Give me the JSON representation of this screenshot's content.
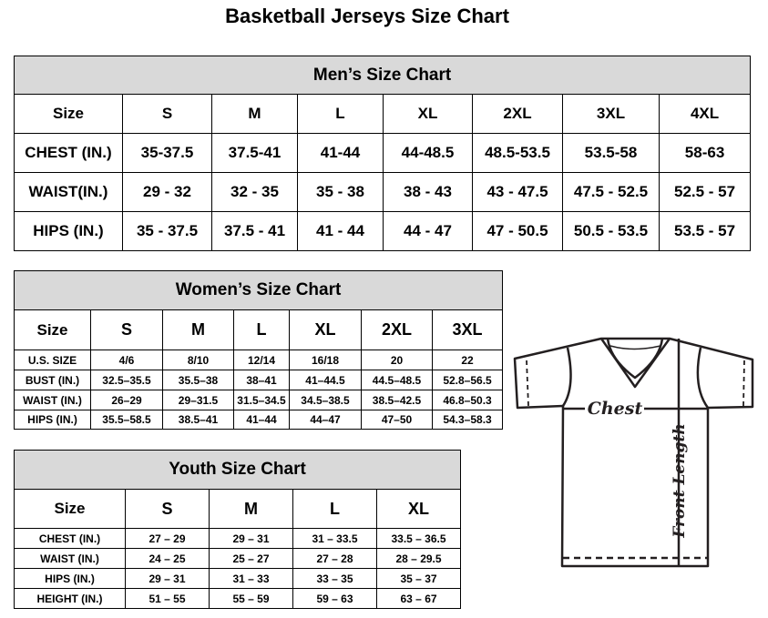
{
  "title": "Basketball Jerseys Size Chart",
  "men": {
    "title": "Men’s Size Chart",
    "rows": [
      [
        "Size",
        "S",
        "M",
        "L",
        "XL",
        "2XL",
        "3XL",
        "4XL"
      ],
      [
        "CHEST (IN.)",
        "35-37.5",
        "37.5-41",
        "41-44",
        "44-48.5",
        "48.5-53.5",
        "53.5-58",
        "58-63"
      ],
      [
        "WAIST(IN.)",
        "29 - 32",
        "32 - 35",
        "35 - 38",
        "38 - 43",
        "43 - 47.5",
        "47.5 - 52.5",
        "52.5 - 57"
      ],
      [
        "HIPS (IN.)",
        "35 - 37.5",
        "37.5 - 41",
        "41 - 44",
        "44 - 47",
        "47 - 50.5",
        "50.5 - 53.5",
        "53.5 - 57"
      ]
    ]
  },
  "women": {
    "title": "Women’s Size Chart",
    "rows": [
      [
        "Size",
        "S",
        "M",
        "L",
        "XL",
        "2XL",
        "3XL"
      ],
      [
        "U.S.  SIZE",
        "4/6",
        "8/10",
        "12/14",
        "16/18",
        "20",
        "22"
      ],
      [
        "BUST  (IN.)",
        "32.5–35.5",
        "35.5–38",
        "38–41",
        "41–44.5",
        "44.5–48.5",
        "52.8–56.5"
      ],
      [
        "WAIST  (IN.)",
        "26–29",
        "29–31.5",
        "31.5–34.5",
        "34.5–38.5",
        "38.5–42.5",
        "46.8–50.3"
      ],
      [
        "HIPS  (IN.)",
        "35.5–58.5",
        "38.5–41",
        "41–44",
        "44–47",
        "47–50",
        "54.3–58.3"
      ]
    ]
  },
  "youth": {
    "title": "Youth Size Chart",
    "rows": [
      [
        "Size",
        "S",
        "M",
        "L",
        "XL"
      ],
      [
        "CHEST  (IN.)",
        "27  –  29",
        "29  –  31",
        "31  –  33.5",
        "33.5  –  36.5"
      ],
      [
        "WAIST  (IN.)",
        "24  –  25",
        "25  –  27",
        "27  –  28",
        "28  –  29.5"
      ],
      [
        "HIPS  (IN.)",
        "29  –  31",
        "31  –  33",
        "33  –  35",
        "35  –  37"
      ],
      [
        "HEIGHT  (IN.)",
        "51  –  55",
        "55  –  59",
        "59  –  63",
        "63  –  67"
      ]
    ]
  },
  "diagram": {
    "chest_label": "Chest",
    "length_label": "Front Length",
    "line_color": "#231f20"
  }
}
